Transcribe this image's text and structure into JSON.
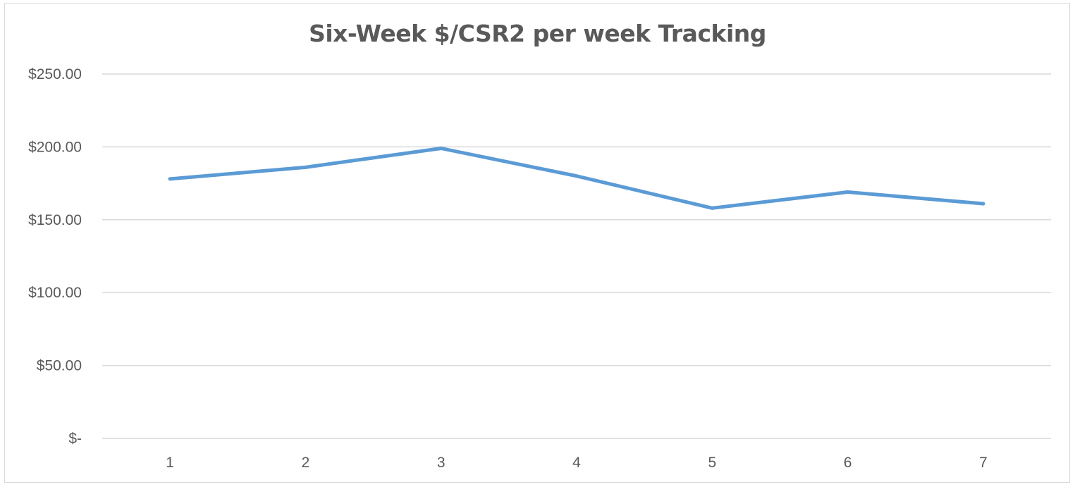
{
  "chart_data": {
    "type": "line",
    "title": "Six-Week $/CSR2 per week Tracking",
    "xlabel": "",
    "ylabel": "",
    "categories": [
      "1",
      "2",
      "3",
      "4",
      "5",
      "6",
      "7"
    ],
    "series": [
      {
        "values": [
          178,
          186,
          199,
          180,
          158,
          169,
          161
        ]
      }
    ],
    "ylim": [
      0,
      250
    ],
    "yticks": [
      0,
      50,
      100,
      150,
      200,
      250
    ],
    "ytick_labels": [
      "$-",
      "$50.00",
      "$100.00",
      "$150.00",
      "$200.00",
      "$250.00"
    ],
    "grid": true,
    "legend": "none",
    "colors": {
      "line": "#5b9bd5",
      "grid": "#d9d9d9",
      "text": "#595959"
    }
  }
}
